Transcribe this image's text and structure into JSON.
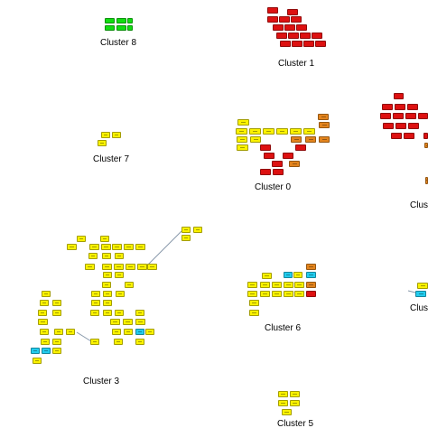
{
  "colors": {
    "red": "#dd1111",
    "orange": "#e3841d",
    "yellow": "#fbf200",
    "green": "#11dd11",
    "cyan": "#22ccee",
    "edge": "#8899aa"
  },
  "clusters": [
    {
      "id": "cluster-8",
      "label": "Cluster 8"
    },
    {
      "id": "cluster-1",
      "label": "Cluster 1"
    },
    {
      "id": "cluster-7",
      "label": "Cluster 7"
    },
    {
      "id": "cluster-0",
      "label": "Cluster 0"
    },
    {
      "id": "cluster-3",
      "label": "Cluster 3"
    },
    {
      "id": "cluster-6",
      "label": "Cluster 6"
    },
    {
      "id": "cluster-5",
      "label": "Cluster 5"
    },
    {
      "id": "cluster-partial-a",
      "label": "Clust"
    },
    {
      "id": "cluster-partial-b",
      "label": "Clus"
    }
  ]
}
